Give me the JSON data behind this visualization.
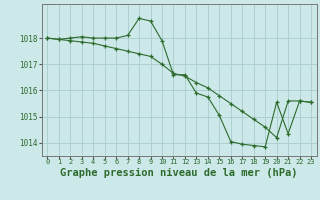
{
  "background_color": "#cce8e8",
  "grid_color": "#aacccc",
  "line_color": "#2d6b2d",
  "xlabel": "Graphe pression niveau de la mer (hPa)",
  "xlabel_fontsize": 7.5,
  "xlim": [
    -0.5,
    23.5
  ],
  "ylim": [
    1013.5,
    1019.3
  ],
  "yticks": [
    1014,
    1015,
    1016,
    1017,
    1018
  ],
  "xticks": [
    0,
    1,
    2,
    3,
    4,
    5,
    6,
    7,
    8,
    9,
    10,
    11,
    12,
    13,
    14,
    15,
    16,
    17,
    18,
    19,
    20,
    21,
    22,
    23
  ],
  "line1_x": [
    0,
    1,
    2,
    3,
    4,
    5,
    6,
    7,
    8,
    9,
    10,
    11,
    12,
    13,
    14,
    15,
    16,
    17,
    18,
    19,
    20,
    21,
    22,
    23
  ],
  "line1_y": [
    1018.0,
    1017.95,
    1017.9,
    1017.85,
    1017.8,
    1017.7,
    1017.6,
    1017.5,
    1017.4,
    1017.3,
    1017.0,
    1016.65,
    1016.55,
    1016.3,
    1016.1,
    1015.8,
    1015.5,
    1015.2,
    1014.9,
    1014.6,
    1014.2,
    1015.6,
    1015.6,
    1015.55
  ],
  "line2_x": [
    0,
    1,
    2,
    3,
    4,
    5,
    6,
    7,
    8,
    9,
    10,
    11,
    12,
    13,
    14,
    15,
    16,
    17,
    18,
    19,
    20,
    21,
    22,
    23
  ],
  "line2_y": [
    1018.0,
    1017.95,
    1018.0,
    1018.05,
    1018.0,
    1018.0,
    1018.0,
    1018.1,
    1018.75,
    1018.65,
    1017.9,
    1016.6,
    1016.6,
    1015.9,
    1015.75,
    1015.05,
    1014.05,
    1013.95,
    1013.9,
    1013.85,
    1015.55,
    1014.35,
    1015.6,
    1015.55
  ]
}
